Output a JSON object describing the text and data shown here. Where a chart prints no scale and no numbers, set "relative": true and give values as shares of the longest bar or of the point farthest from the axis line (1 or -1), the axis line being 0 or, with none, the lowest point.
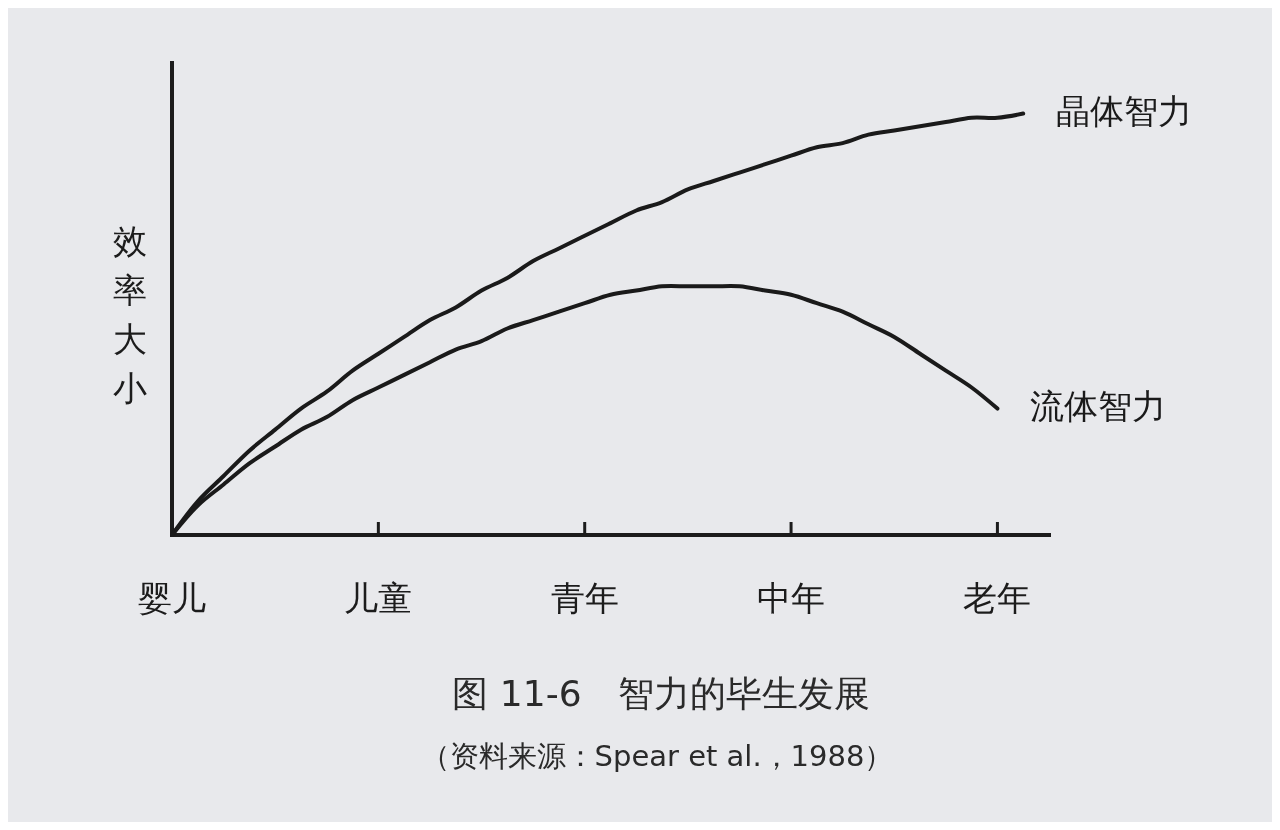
{
  "chart_data": {
    "type": "line",
    "title": "图 11-6　智力的毕生发展",
    "annotations": [
      "（资料来源：Spear et al.，1988）"
    ],
    "ylabel": "效率大小",
    "relative": true,
    "categories": [
      "婴儿",
      null,
      null,
      null,
      null,
      null,
      null,
      null,
      "儿童",
      null,
      null,
      null,
      null,
      null,
      null,
      null,
      "青年",
      null,
      null,
      null,
      null,
      null,
      null,
      null,
      "中年",
      null,
      null,
      null,
      null,
      null,
      null,
      null,
      "老年",
      null,
      null
    ],
    "series": [
      {
        "name": "晶体智力",
        "color": "#1a1a1a",
        "values": [
          0,
          0.08,
          0.14,
          0.2,
          0.25,
          0.3,
          0.34,
          0.39,
          0.43,
          0.47,
          0.51,
          0.54,
          0.58,
          0.61,
          0.65,
          0.68,
          0.71,
          0.74,
          0.77,
          0.79,
          0.82,
          0.84,
          0.86,
          0.88,
          0.9,
          0.92,
          0.93,
          0.95,
          0.96,
          0.97,
          0.98,
          0.99,
          0.99,
          1,
          null
        ]
      },
      {
        "name": "流体智力",
        "color": "#1a1a1a",
        "values": [
          0,
          0.07,
          0.12,
          0.17,
          0.21,
          0.25,
          0.28,
          0.32,
          0.35,
          0.38,
          0.41,
          0.44,
          0.46,
          0.49,
          0.51,
          0.53,
          0.55,
          0.57,
          0.58,
          0.59,
          0.59,
          0.59,
          0.59,
          0.58,
          0.57,
          0.55,
          0.53,
          0.5,
          0.47,
          0.43,
          0.39,
          0.35,
          0.3,
          null,
          null
        ]
      }
    ]
  }
}
